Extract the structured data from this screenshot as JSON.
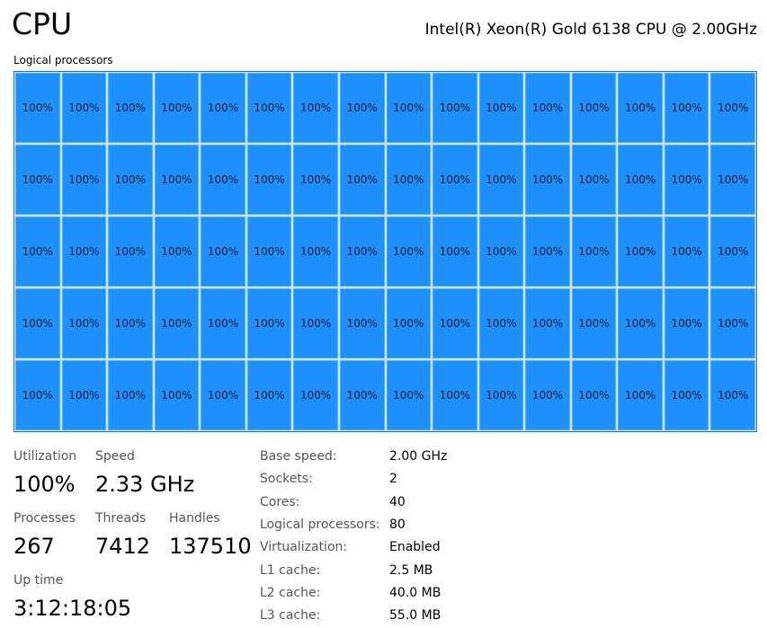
{
  "header": {
    "title": "CPU",
    "model": "Intel(R) Xeon(R) Gold 6138 CPU @ 2.00GHz"
  },
  "grid": {
    "label": "Logical processors",
    "cells": [
      "100%",
      "100%",
      "100%",
      "100%",
      "100%",
      "100%",
      "100%",
      "100%",
      "100%",
      "100%",
      "100%",
      "100%",
      "100%",
      "100%",
      "100%",
      "100%",
      "100%",
      "100%",
      "100%",
      "100%",
      "100%",
      "100%",
      "100%",
      "100%",
      "100%",
      "100%",
      "100%",
      "100%",
      "100%",
      "100%",
      "100%",
      "100%",
      "100%",
      "100%",
      "100%",
      "100%",
      "100%",
      "100%",
      "100%",
      "100%",
      "100%",
      "100%",
      "100%",
      "100%",
      "100%",
      "100%",
      "100%",
      "100%",
      "100%",
      "100%",
      "100%",
      "100%",
      "100%",
      "100%",
      "100%",
      "100%",
      "100%",
      "100%",
      "100%",
      "100%",
      "100%",
      "100%",
      "100%",
      "100%",
      "100%",
      "100%",
      "100%",
      "100%",
      "100%",
      "100%",
      "100%",
      "100%",
      "100%",
      "100%",
      "100%",
      "100%",
      "100%",
      "100%",
      "100%",
      "100%"
    ]
  },
  "stats": [
    {
      "label": "Utilization",
      "value": "100%"
    },
    {
      "label": "Speed",
      "value": "2.33 GHz"
    },
    {
      "label": "Processes",
      "value": "267"
    },
    {
      "label": "Threads",
      "value": "7412"
    },
    {
      "label": "Handles",
      "value": "137510"
    },
    {
      "label": "Up time",
      "value": "3:12:18:05"
    }
  ],
  "details": [
    {
      "label": "Base speed:",
      "value": "2.00 GHz"
    },
    {
      "label": "Sockets:",
      "value": "2"
    },
    {
      "label": "Cores:",
      "value": "40"
    },
    {
      "label": "Logical processors:",
      "value": "80"
    },
    {
      "label": "Virtualization:",
      "value": "Enabled"
    },
    {
      "label": "L1 cache:",
      "value": "2.5 MB"
    },
    {
      "label": "L2 cache:",
      "value": "40.0 MB"
    },
    {
      "label": "L3 cache:",
      "value": "55.0 MB"
    }
  ]
}
